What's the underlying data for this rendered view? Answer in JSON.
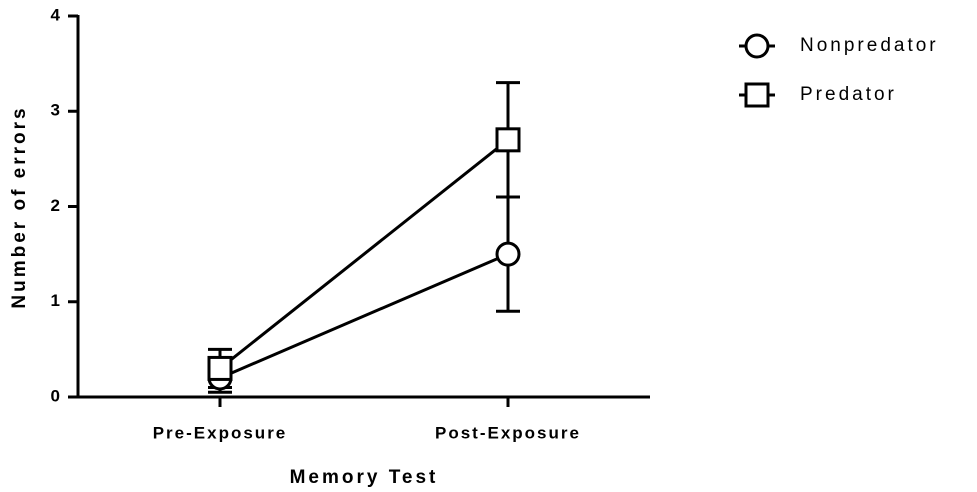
{
  "chart_data": {
    "type": "line",
    "categories": [
      "Pre-Exposure",
      "Post-Exposure"
    ],
    "series": [
      {
        "name": "Nonpredator",
        "marker": "circle",
        "color": "#000000",
        "values": [
          0.2,
          1.5
        ],
        "errors": [
          0.15,
          0.6
        ]
      },
      {
        "name": "Predator",
        "marker": "square",
        "color": "#000000",
        "values": [
          0.3,
          2.7
        ],
        "errors": [
          0.2,
          0.6
        ]
      }
    ],
    "xlabel": "Memory Test",
    "ylabel": "Number of errors",
    "ylim": [
      0,
      4
    ],
    "yticks": [
      0,
      1,
      2,
      3,
      4
    ],
    "legend": "right"
  }
}
